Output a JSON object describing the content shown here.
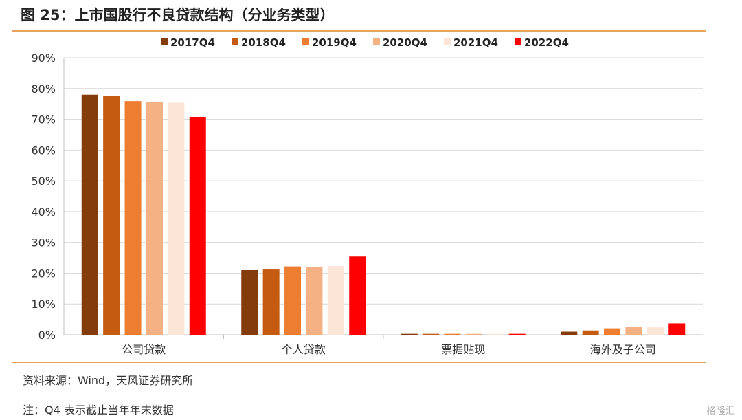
{
  "header": {
    "title": "图 25：上市国股行不良贷款结构（分业务类型）"
  },
  "footer": {
    "source": "资料来源：Wind，天风证券研究所",
    "note": "注：Q4 表示截止当年年末数据",
    "watermark": "格隆汇"
  },
  "chart_data": {
    "type": "bar",
    "title": "",
    "xlabel": "",
    "ylabel": "",
    "categories": [
      "公司贷款",
      "个人贷款",
      "票据贴现",
      "海外及子公司"
    ],
    "series": [
      {
        "name": "2017Q4",
        "color": "#843C0C",
        "values": [
          78.0,
          21.0,
          0.3,
          1.0
        ]
      },
      {
        "name": "2018Q4",
        "color": "#C55A11",
        "values": [
          77.5,
          21.2,
          0.3,
          1.4
        ]
      },
      {
        "name": "2019Q4",
        "color": "#ED7D31",
        "values": [
          75.9,
          22.2,
          0.3,
          2.1
        ]
      },
      {
        "name": "2020Q4",
        "color": "#F4B183",
        "values": [
          75.5,
          22.0,
          0.3,
          2.6
        ]
      },
      {
        "name": "2021Q4",
        "color": "#FBE5D6",
        "values": [
          75.4,
          22.3,
          0.3,
          2.4
        ]
      },
      {
        "name": "2022Q4",
        "color": "#FF0000",
        "values": [
          70.8,
          25.4,
          0.3,
          3.7
        ]
      }
    ],
    "ylim": [
      0,
      90
    ],
    "yticks": [
      "0%",
      "10%",
      "20%",
      "30%",
      "40%",
      "50%",
      "60%",
      "70%",
      "80%",
      "90%"
    ],
    "grid": true,
    "legend_position": "top"
  }
}
